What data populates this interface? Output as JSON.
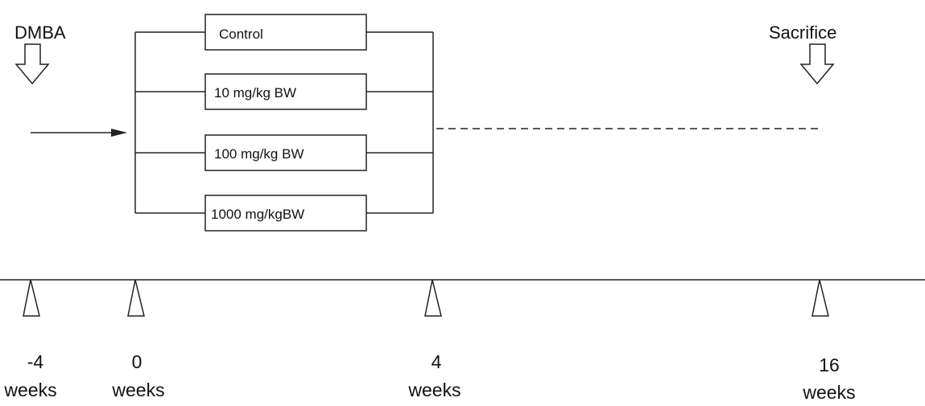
{
  "labels": {
    "dmba": "DMBA",
    "sacrifice": "Sacrifice"
  },
  "groups": [
    {
      "label": "Control"
    },
    {
      "label": "10 mg/kg BW"
    },
    {
      "label": "100 mg/kg BW"
    },
    {
      "label": "1000 mg/kgBW"
    }
  ],
  "timeline": [
    {
      "value": "-4",
      "unit": "weeks"
    },
    {
      "value": "0",
      "unit": "weeks"
    },
    {
      "value": "4",
      "unit": "weeks"
    },
    {
      "value": "16",
      "unit": "weeks"
    }
  ]
}
